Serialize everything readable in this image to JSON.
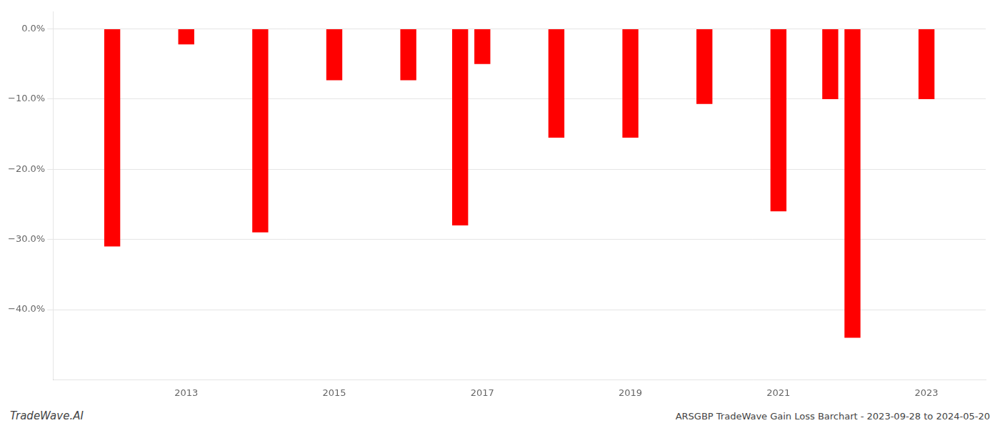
{
  "chart_data": {
    "type": "bar",
    "x": [
      2012,
      2013,
      2014,
      2015,
      2016,
      2016.7,
      2017,
      2018,
      2019,
      2020,
      2021,
      2021.7,
      2022,
      2023
    ],
    "values": [
      -0.31,
      -0.022,
      -0.29,
      -0.073,
      -0.073,
      -0.28,
      -0.05,
      -0.155,
      -0.155,
      -0.107,
      -0.26,
      -0.1,
      -0.44,
      -0.1
    ],
    "color": "#ff0000",
    "xlim": [
      2011.2,
      2023.8
    ],
    "xticks": [
      2013,
      2015,
      2017,
      2019,
      2021,
      2023
    ],
    "ylim": [
      -0.5,
      0.025
    ],
    "yticks": [
      {
        "value": 0.0,
        "label": "0.0%"
      },
      {
        "value": -0.1,
        "label": "−10.0%"
      },
      {
        "value": -0.2,
        "label": "−20.0%"
      },
      {
        "value": -0.3,
        "label": "−30.0%"
      },
      {
        "value": -0.4,
        "label": "−40.0%"
      }
    ],
    "grid": true,
    "annotations": [
      "TradeWave.AI",
      "ARSGBP TradeWave Gain Loss Barchart - 2023-09-28 to 2024-05-20"
    ]
  }
}
